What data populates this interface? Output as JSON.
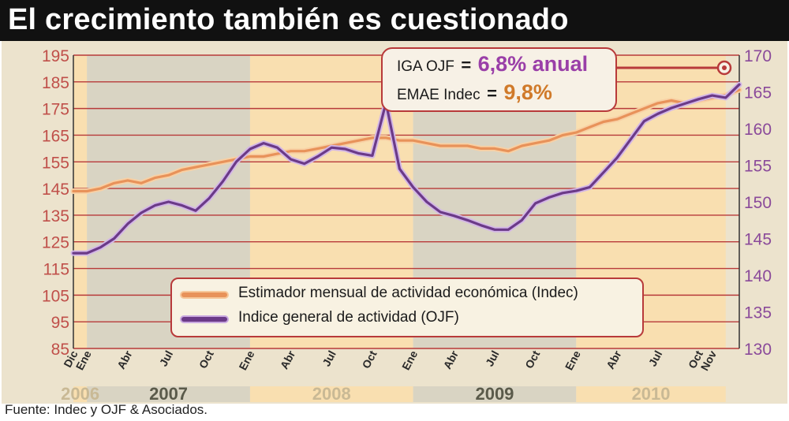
{
  "title": "El crecimiento también es cuestionado",
  "source": "Fuente: Indec y OJF & Asociados.",
  "callout": {
    "iga_label": "IGA OJF",
    "iga_value": "6,8% anual",
    "emae_label": "EMAE Indec",
    "emae_value": "9,8%",
    "equals": "="
  },
  "colors": {
    "emae_line": "#e8925a",
    "iga_line": "#6b3a88",
    "left_axis_text": "#c0504a",
    "right_axis_text": "#8a4a9a",
    "grid_line": "#b83a3a",
    "band_light": "#f9dfb0",
    "band_dark": "#d9d4c3",
    "frame": "#ece3cd",
    "callout_purple": "#9a3fa8",
    "callout_orange": "#d07a2a"
  },
  "chart_data": {
    "type": "line",
    "title": "El crecimiento también es cuestionado",
    "left_axis": {
      "range": [
        85,
        195
      ],
      "ticks": [
        "195",
        "185",
        "175",
        "165",
        "155",
        "145",
        "135",
        "125",
        "115",
        "105",
        "95",
        "85"
      ]
    },
    "right_axis": {
      "range": [
        130,
        170
      ],
      "ticks": [
        "170",
        "165",
        "160",
        "155",
        "150",
        "145",
        "140",
        "135",
        "130"
      ]
    },
    "x_labels": [
      "Dic",
      "Ene",
      "Abr",
      "Jul",
      "Oct",
      "Ene",
      "Abr",
      "Jul",
      "Oct",
      "Ene",
      "Abr",
      "Jul",
      "Oct",
      "Ene",
      "Abr",
      "Jul",
      "Oct",
      "Nov"
    ],
    "x_label_month_index": [
      0,
      1,
      4,
      7,
      10,
      13,
      16,
      19,
      22,
      25,
      28,
      31,
      34,
      37,
      40,
      43,
      46,
      47
    ],
    "years": [
      {
        "label": "2006",
        "start": 0,
        "end": 1,
        "shade": "light"
      },
      {
        "label": "2007",
        "start": 1,
        "end": 13,
        "shade": "dark"
      },
      {
        "label": "2008",
        "start": 13,
        "end": 25,
        "shade": "light"
      },
      {
        "label": "2009",
        "start": 25,
        "end": 37,
        "shade": "dark"
      },
      {
        "label": "2010",
        "start": 37,
        "end": 48,
        "shade": "light"
      }
    ],
    "legend": [
      {
        "label": "Estimador mensual de actividad económica (Indec)",
        "series": "emae"
      },
      {
        "label": "Indice general de actividad (OJF)",
        "series": "iga"
      }
    ],
    "series": [
      {
        "key": "emae",
        "name": "Estimador mensual de actividad económica (Indec)",
        "axis": "left",
        "values": [
          144,
          144,
          145,
          147,
          148,
          147,
          149,
          150,
          152,
          153,
          154,
          155,
          156,
          157,
          157,
          158,
          159,
          159,
          160,
          161,
          162,
          163,
          164,
          164,
          163,
          163,
          162,
          161,
          161,
          161,
          160,
          160,
          159,
          161,
          162,
          163,
          165,
          166,
          168,
          170,
          171,
          173,
          175,
          177,
          178,
          177,
          178,
          179,
          180,
          182
        ]
      },
      {
        "key": "iga",
        "name": "Indice general de actividad (OJF)",
        "axis": "right",
        "values": [
          143,
          143,
          143.8,
          145,
          147,
          148.5,
          149.5,
          150,
          149.5,
          148.8,
          150.5,
          152.8,
          155.5,
          157.2,
          158,
          157.4,
          155.8,
          155.2,
          156.2,
          157.4,
          157.2,
          156.6,
          156.3,
          163.5,
          154.5,
          152,
          150,
          148.6,
          148.1,
          147.5,
          146.8,
          146.2,
          146.2,
          147.5,
          149.8,
          150.6,
          151.2,
          151.5,
          152,
          154,
          156,
          158.5,
          161,
          162,
          162.8,
          163.4,
          164,
          164.5,
          164.2,
          166
        ]
      }
    ]
  }
}
